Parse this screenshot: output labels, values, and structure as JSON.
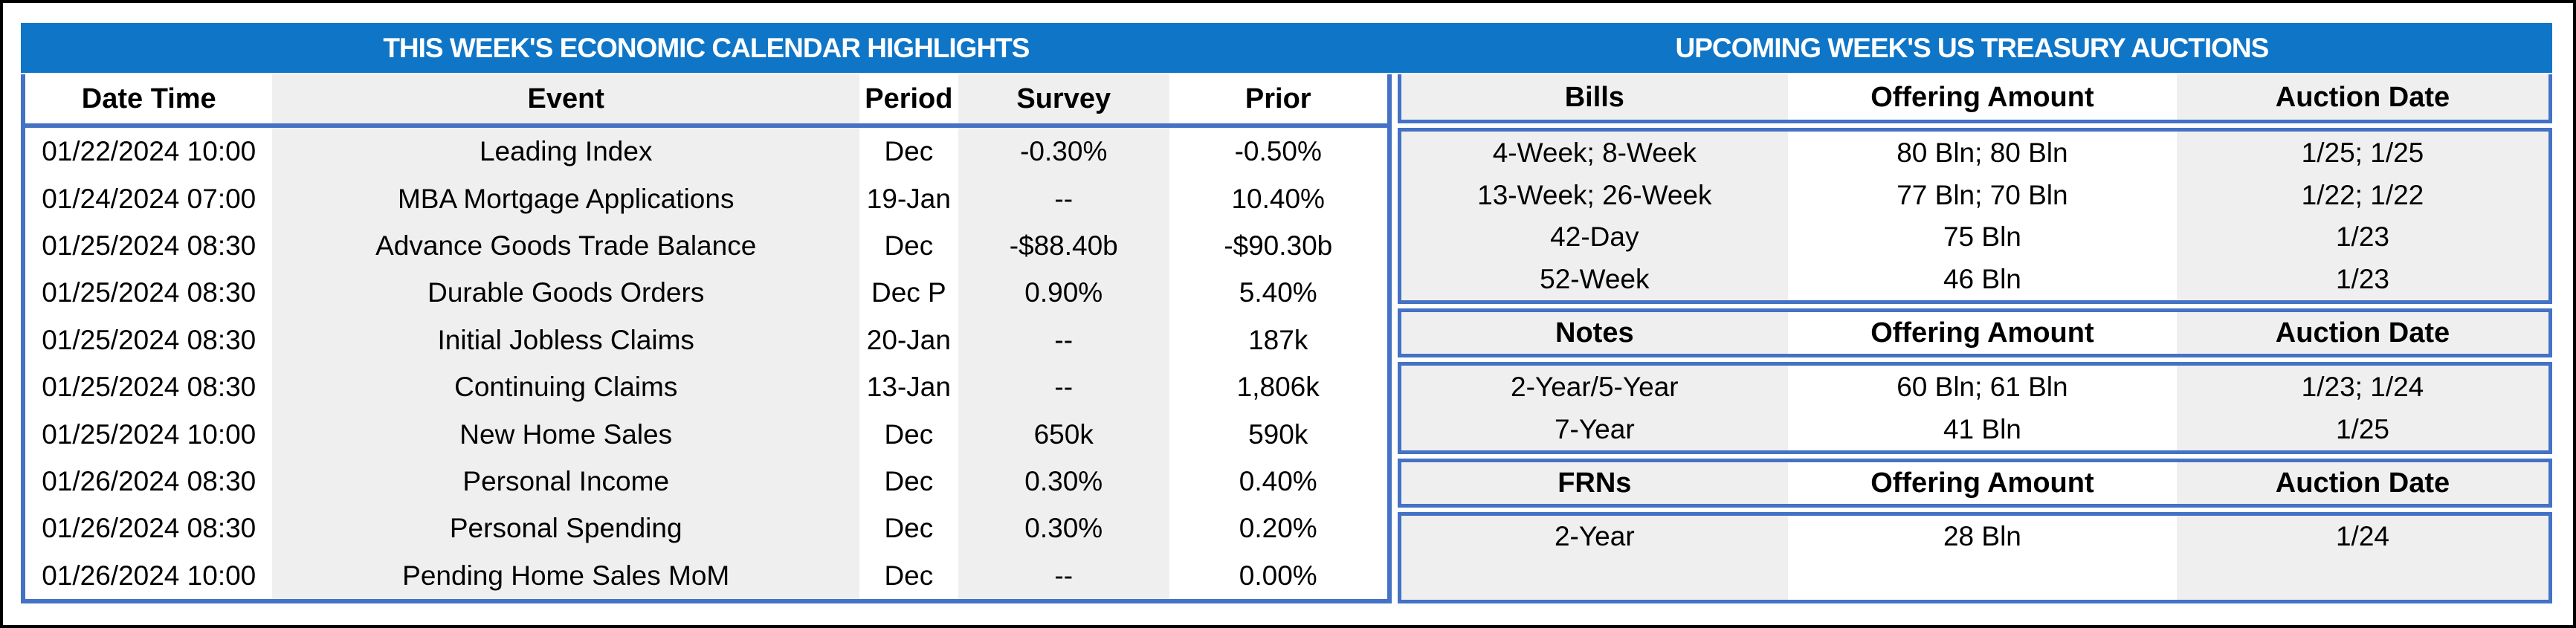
{
  "colors": {
    "title_bar_blue": "#0E75C7",
    "table_border_blue": "#4472C4",
    "column_stripe_gray": "#EFEFEF",
    "frame_border": "#000000",
    "title_text": "#FFFFFF",
    "body_text": "#000000"
  },
  "titles": {
    "left": "THIS WEEK'S ECONOMIC CALENDAR HIGHLIGHTS",
    "right": "UPCOMING WEEK'S US TREASURY AUCTIONS"
  },
  "calendar": {
    "columns": [
      "Date Time",
      "Event",
      "Period",
      "Survey",
      "Prior"
    ],
    "rows": [
      [
        "01/22/2024 10:00",
        "Leading Index",
        "Dec",
        "-0.30%",
        "-0.50%"
      ],
      [
        "01/24/2024 07:00",
        "MBA Mortgage Applications",
        "19-Jan",
        "--",
        "10.40%"
      ],
      [
        "01/25/2024 08:30",
        "Advance Goods Trade Balance",
        "Dec",
        "-$88.40b",
        "-$90.30b"
      ],
      [
        "01/25/2024 08:30",
        "Durable Goods Orders",
        "Dec P",
        "0.90%",
        "5.40%"
      ],
      [
        "01/25/2024 08:30",
        "Initial Jobless Claims",
        "20-Jan",
        "--",
        "187k"
      ],
      [
        "01/25/2024 08:30",
        "Continuing Claims",
        "13-Jan",
        "--",
        "1,806k"
      ],
      [
        "01/25/2024 10:00",
        "New Home Sales",
        "Dec",
        "650k",
        "590k"
      ],
      [
        "01/26/2024 08:30",
        "Personal Income",
        "Dec",
        "0.30%",
        "0.40%"
      ],
      [
        "01/26/2024 08:30",
        "Personal Spending",
        "Dec",
        "0.30%",
        "0.20%"
      ],
      [
        "01/26/2024 10:00",
        "Pending Home Sales MoM",
        "Dec",
        "--",
        "0.00%"
      ]
    ]
  },
  "auctions": {
    "sections": [
      {
        "header": [
          "Bills",
          "Offering Amount",
          "Auction Date"
        ],
        "rows": [
          [
            "4-Week; 8-Week",
            "80 Bln; 80 Bln",
            "1/25; 1/25"
          ],
          [
            "13-Week; 26-Week",
            "77 Bln; 70 Bln",
            "1/22; 1/22"
          ],
          [
            "42-Day",
            "75 Bln",
            "1/23"
          ],
          [
            "52-Week",
            "46 Bln",
            "1/23"
          ]
        ]
      },
      {
        "header": [
          "Notes",
          "Offering Amount",
          "Auction Date"
        ],
        "rows": [
          [
            "2-Year/5-Year",
            "60 Bln; 61 Bln",
            "1/23; 1/24"
          ],
          [
            "7-Year",
            "41 Bln",
            "1/25"
          ]
        ]
      },
      {
        "header": [
          "FRNs",
          "Offering Amount",
          "Auction Date"
        ],
        "rows": [
          [
            "2-Year",
            "28 Bln",
            "1/24"
          ]
        ]
      }
    ]
  }
}
